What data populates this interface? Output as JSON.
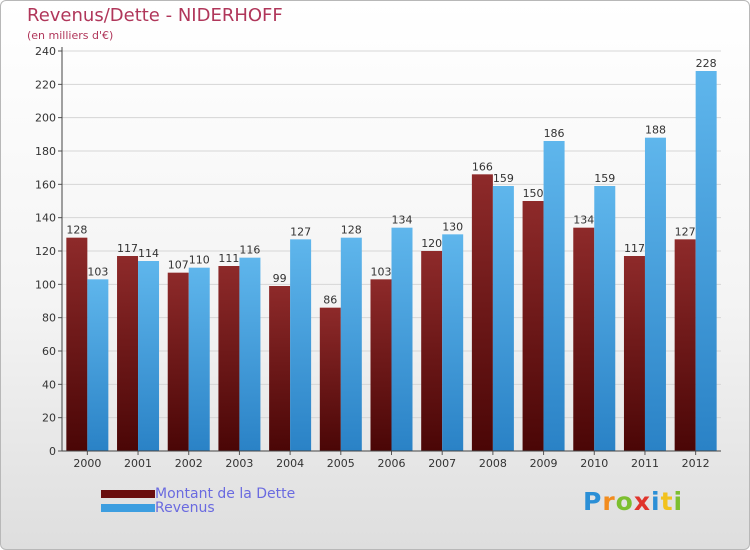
{
  "title": "Revenus/Dette - NIDERHOFF",
  "subtitle": "(en milliers d'€)",
  "logo": {
    "letters": [
      {
        "ch": "P",
        "color": "#2b8fd6"
      },
      {
        "ch": "r",
        "color": "#f28c1e"
      },
      {
        "ch": "o",
        "color": "#7cbf2f"
      },
      {
        "ch": "x",
        "color": "#e0342c"
      },
      {
        "ch": "i",
        "color": "#2b8fd6"
      },
      {
        "ch": "t",
        "color": "#f2c21e"
      },
      {
        "ch": "i",
        "color": "#7cbf2f"
      }
    ]
  },
  "chart_data": {
    "type": "bar",
    "categories": [
      "2000",
      "2001",
      "2002",
      "2003",
      "2004",
      "2005",
      "2006",
      "2007",
      "2008",
      "2009",
      "2010",
      "2011",
      "2012"
    ],
    "series": [
      {
        "name": "Montant de la Dette",
        "color": "#7a1a1a",
        "values": [
          128,
          117,
          107,
          111,
          99,
          86,
          103,
          120,
          166,
          150,
          134,
          117,
          127
        ]
      },
      {
        "name": "Revenus",
        "color": "#3d9ee0",
        "values": [
          103,
          114,
          110,
          116,
          127,
          128,
          134,
          130,
          159,
          186,
          159,
          188,
          228
        ]
      }
    ],
    "ylim": [
      0,
      240
    ],
    "yticks": [
      0,
      20,
      40,
      60,
      80,
      100,
      120,
      140,
      160,
      180,
      200,
      220,
      240
    ],
    "grid": true,
    "legend": "bottom-left"
  }
}
